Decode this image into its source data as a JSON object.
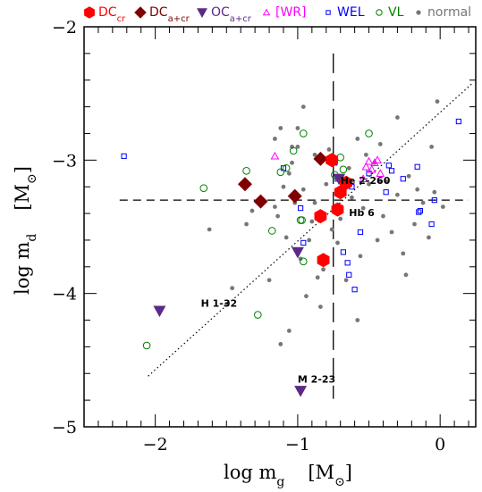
{
  "chart_data": {
    "type": "scatter",
    "xlabel_main": "log m",
    "xlabel_sub": "g",
    "xlabel_unit": "[M",
    "xlabel_unit_close": "]",
    "ylabel_main": "log m",
    "ylabel_sub": "d",
    "ylabel_unit": "[M",
    "ylabel_unit_close": "]",
    "xlim": [
      -2.5,
      0.25
    ],
    "ylim": [
      -5,
      -2
    ],
    "xticks": [
      -2,
      -1,
      0
    ],
    "xtick_labels": [
      "−2",
      "−1",
      "0"
    ],
    "yticks": [
      -2,
      -3,
      -4,
      -5
    ],
    "ytick_labels": [
      "−2",
      "−3",
      "−4",
      "−5"
    ],
    "legend": [
      {
        "marker": "hexagon",
        "label": "DC",
        "sub": "cr",
        "color": "#ff0000"
      },
      {
        "marker": "diamond",
        "label": "DC",
        "sub": "a+cr",
        "color": "#800000"
      },
      {
        "marker": "triangle-down",
        "label": "OC",
        "sub": "a+cr",
        "color": "#5b2a86"
      },
      {
        "marker": "triangle-open",
        "label": "[WR]",
        "sub": "",
        "color": "#ff00ff"
      },
      {
        "marker": "square-open",
        "label": "WEL",
        "sub": "",
        "color": "#0000ff"
      },
      {
        "marker": "circle-open",
        "label": "VL",
        "sub": "",
        "color": "#008000"
      },
      {
        "marker": "dot",
        "label": "normal",
        "sub": "",
        "color": "#777777"
      }
    ],
    "reference_lines": {
      "vertical_x": -0.75,
      "horizontal_y": -3.3,
      "fit_line": {
        "x": [
          -2.05,
          0.22
        ],
        "y": [
          -4.62,
          -2.43
        ]
      }
    },
    "annotations": [
      {
        "text": "He 2-260",
        "x": -0.7,
        "y": -3.18
      },
      {
        "text": "Hb 6",
        "x": -0.64,
        "y": -3.42
      },
      {
        "text": "H 1-32",
        "x": -1.68,
        "y": -4.1
      },
      {
        "text": "M 2-23",
        "x": -1.0,
        "y": -4.67
      }
    ],
    "series": [
      {
        "name": "DCcr",
        "marker": "hexagon",
        "color": "#ff0000",
        "x": [
          -0.76,
          -0.7,
          -0.66,
          -0.72,
          -0.84,
          -0.82
        ],
        "y": [
          -3.0,
          -3.24,
          -3.17,
          -3.37,
          -3.42,
          -3.75
        ]
      },
      {
        "name": "DCa+cr",
        "marker": "diamond",
        "color": "#800000",
        "x": [
          -1.37,
          -1.26,
          -1.02,
          -0.84
        ],
        "y": [
          -3.18,
          -3.31,
          -3.27,
          -2.99
        ]
      },
      {
        "name": "OCa+cr",
        "marker": "triangle-down",
        "color": "#5b2a86",
        "x": [
          -1.97,
          -1.0,
          -0.71,
          -0.98
        ],
        "y": [
          -4.13,
          -3.69,
          -3.14,
          -4.73
        ]
      },
      {
        "name": "[WR]",
        "marker": "triangle-open",
        "color": "#ff00ff",
        "x": [
          -1.16,
          -0.5,
          -0.46,
          -0.44,
          -0.48,
          -0.42,
          -0.52,
          -0.54
        ],
        "y": [
          -2.97,
          -3.01,
          -3.02,
          -3.0,
          -3.07,
          -3.1,
          -3.05,
          -3.14
        ]
      },
      {
        "name": "WEL",
        "marker": "square-open",
        "color": "#0000ff",
        "x": [
          -2.22,
          -1.1,
          -0.98,
          -0.96,
          -0.74,
          -0.72,
          -0.62,
          -0.5,
          -0.38,
          -0.34,
          -0.26,
          -0.16,
          -0.15,
          -0.06,
          -0.04,
          0.13,
          -0.65,
          -0.64,
          -0.6,
          -0.68,
          -0.56,
          -0.14,
          -0.36
        ],
        "y": [
          -2.97,
          -3.06,
          -3.36,
          -3.62,
          -3.02,
          -3.14,
          -3.2,
          -3.1,
          -3.24,
          -3.08,
          -3.14,
          -3.05,
          -3.39,
          -3.48,
          -3.3,
          -2.71,
          -3.77,
          -3.86,
          -3.97,
          -3.69,
          -3.54,
          -3.38,
          -3.04
        ]
      },
      {
        "name": "VL",
        "marker": "circle-open",
        "color": "#008000",
        "x": [
          -2.06,
          -1.66,
          -1.36,
          -1.18,
          -1.12,
          -1.08,
          -1.03,
          -0.98,
          -0.97,
          -0.96,
          -0.74,
          -0.7,
          -0.68,
          -0.5,
          -1.28,
          -0.96
        ],
        "y": [
          -4.39,
          -3.21,
          -3.08,
          -3.53,
          -3.09,
          -3.06,
          -2.93,
          -3.45,
          -3.45,
          -3.76,
          -3.11,
          -2.98,
          -3.07,
          -2.8,
          -4.16,
          -2.8
        ]
      },
      {
        "name": "normal",
        "marker": "dot",
        "color": "#777777",
        "x": [
          -1.62,
          -1.36,
          -1.32,
          -1.2,
          -1.16,
          -1.14,
          -1.12,
          -1.1,
          -1.08,
          -1.06,
          -1.04,
          -1.02,
          -1.0,
          -0.98,
          -0.96,
          -0.94,
          -0.92,
          -0.9,
          -0.88,
          -0.86,
          -0.84,
          -0.82,
          -0.8,
          -0.78,
          -0.76,
          -0.72,
          -0.7,
          -0.66,
          -0.64,
          -0.62,
          -0.58,
          -0.56,
          -0.54,
          -0.5,
          -0.46,
          -0.44,
          -0.42,
          -0.4,
          -0.38,
          -0.34,
          -0.3,
          -0.26,
          -0.24,
          -0.22,
          -0.18,
          -0.16,
          -0.12,
          -0.08,
          -0.06,
          -0.04,
          -0.02,
          0.02,
          -1.12,
          -1.16,
          -0.96,
          -0.58,
          -0.52,
          -0.3,
          -0.42,
          -0.88,
          -1.0,
          -1.04,
          -1.06,
          -1.46,
          -1.5
        ],
        "y": [
          -3.52,
          -3.48,
          -3.38,
          -3.9,
          -3.35,
          -3.42,
          -4.38,
          -3.2,
          -3.58,
          -3.1,
          -3.02,
          -3.32,
          -2.9,
          -3.74,
          -3.22,
          -4.02,
          -3.6,
          -3.46,
          -2.96,
          -3.88,
          -4.1,
          -3.82,
          -3.18,
          -2.92,
          -3.52,
          -3.62,
          -3.44,
          -3.9,
          -3.06,
          -3.28,
          -4.2,
          -3.72,
          -3.36,
          -3.18,
          -3.02,
          -3.6,
          -2.88,
          -3.42,
          -3.16,
          -3.54,
          -3.26,
          -3.7,
          -3.86,
          -3.12,
          -3.48,
          -3.22,
          -3.32,
          -3.58,
          -2.9,
          -3.24,
          -2.56,
          -3.35,
          -2.76,
          -2.84,
          -2.6,
          -2.84,
          -2.96,
          -2.68,
          -3.16,
          -3.32,
          -2.76,
          -2.9,
          -4.28,
          -3.96,
          -4.08
        ]
      }
    ]
  }
}
